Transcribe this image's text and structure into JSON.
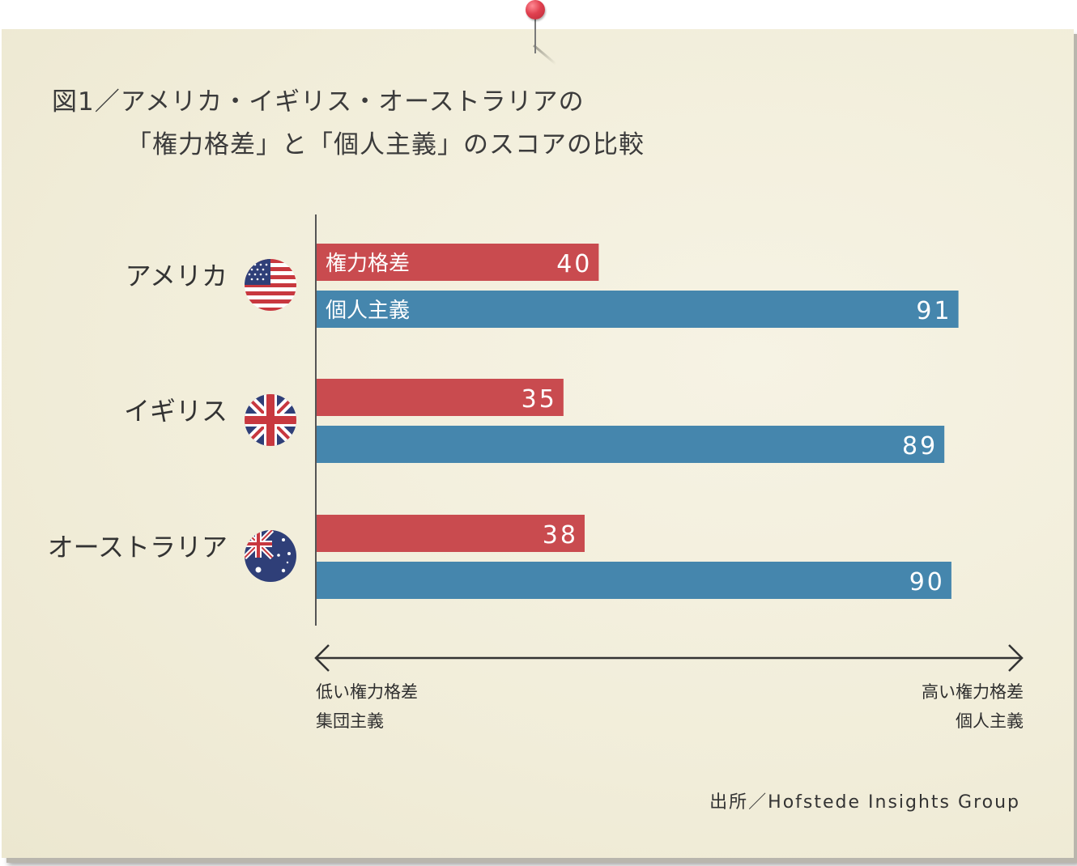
{
  "title": {
    "line1": "図1／アメリカ・イギリス・オーストラリアの",
    "line2": "「権力格差」と「個人主義」のスコアの比較"
  },
  "chart_data": {
    "type": "bar",
    "orientation": "horizontal",
    "categories": [
      "アメリカ",
      "イギリス",
      "オーストラリア"
    ],
    "series": [
      {
        "name": "権力格差",
        "values": [
          40,
          35,
          38
        ],
        "color": "#c94b4f"
      },
      {
        "name": "個人主義",
        "values": [
          91,
          89,
          90
        ],
        "color": "#4586ad"
      }
    ],
    "xlim": [
      0,
      100
    ],
    "axis_left_label": [
      "低い権力格差",
      "集団主義"
    ],
    "axis_right_label": [
      "高い権力格差",
      "個人主義"
    ]
  },
  "flags": [
    "us-flag-icon",
    "uk-flag-icon",
    "australia-flag-icon"
  ],
  "source": "出所／Hofstede Insights Group"
}
